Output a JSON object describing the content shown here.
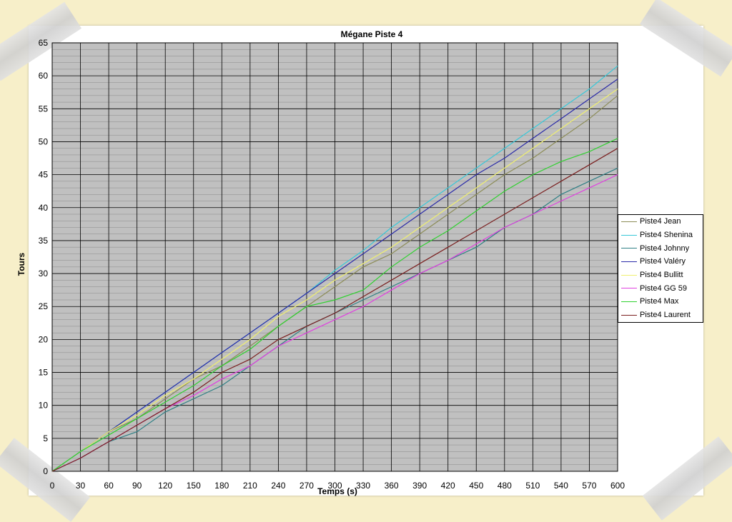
{
  "chart_data": {
    "type": "line",
    "title": "Mégane Piste 4",
    "xlabel": "Temps (s)",
    "ylabel": "Tours",
    "xlim": [
      0,
      600
    ],
    "ylim": [
      0,
      65
    ],
    "xticks": [
      "0",
      "30",
      "60",
      "90",
      "120",
      "150",
      "180",
      "210",
      "240",
      "270",
      "300",
      "330",
      "360",
      "390",
      "420",
      "450",
      "480",
      "510",
      "540",
      "570",
      "600"
    ],
    "yticks": [
      "0",
      "5",
      "10",
      "15",
      "20",
      "25",
      "30",
      "35",
      "40",
      "45",
      "50",
      "55",
      "60",
      "65"
    ],
    "grid": true,
    "legend_position": "right",
    "x": [
      0,
      30,
      60,
      90,
      120,
      150,
      180,
      210,
      240,
      270,
      300,
      330,
      360,
      390,
      420,
      450,
      480,
      510,
      540,
      570,
      600
    ],
    "series": [
      {
        "name": "Piste4 Jean",
        "color": "#8c8c57",
        "values": [
          0,
          3,
          6,
          8,
          11,
          14,
          16,
          19,
          22,
          25,
          28,
          31,
          33,
          36,
          39,
          42,
          45,
          47.5,
          50.5,
          53.5,
          57
        ]
      },
      {
        "name": "Piste4 Shenina",
        "color": "#38c8d8",
        "values": [
          0,
          3,
          6,
          9,
          12,
          15,
          18,
          21,
          24,
          27,
          30.5,
          33.5,
          37,
          40,
          43,
          46,
          49,
          52,
          55,
          58,
          61.5
        ]
      },
      {
        "name": "Piste4 Johnny",
        "color": "#2f7f85",
        "values": [
          0,
          2,
          4.5,
          6,
          9,
          11,
          13,
          16,
          19,
          22,
          24,
          26,
          28,
          30,
          32,
          34,
          37,
          39,
          42,
          44,
          46
        ]
      },
      {
        "name": "Piste4 Valéry",
        "color": "#2a2aa8",
        "values": [
          0,
          3,
          6,
          9,
          12,
          15,
          18,
          21,
          24,
          27,
          30,
          33,
          36,
          39,
          42,
          45,
          47.5,
          50.5,
          53.5,
          56.5,
          59.5
        ]
      },
      {
        "name": "Piste4 Bullitt",
        "color": "#f0f070",
        "values": [
          0,
          3,
          6,
          8.5,
          11.5,
          14,
          17,
          20,
          23.5,
          26,
          29,
          31.5,
          34,
          37,
          40,
          43,
          46,
          49,
          52,
          55,
          58
        ]
      },
      {
        "name": "Piste4 GG 59",
        "color": "#e040e0",
        "values": [
          0,
          2,
          4.5,
          7,
          9.5,
          11.5,
          14,
          16,
          19,
          21,
          23,
          25,
          27.5,
          30,
          32,
          34.5,
          37,
          39,
          41,
          43,
          45
        ]
      },
      {
        "name": "Piste4 Max",
        "color": "#30d030",
        "values": [
          0,
          3,
          5.5,
          8,
          10.5,
          13,
          16,
          18.5,
          22,
          25,
          26,
          27.5,
          31,
          34,
          36.5,
          39.5,
          42.5,
          45,
          47,
          48.5,
          50.5
        ]
      },
      {
        "name": "Piste4 Laurent",
        "color": "#7a1f1f",
        "values": [
          0,
          2,
          4.5,
          7,
          9.5,
          12,
          15,
          17,
          20,
          22,
          24,
          26.5,
          29,
          31.5,
          34,
          36.5,
          39,
          41.5,
          44,
          46.5,
          49
        ]
      }
    ]
  }
}
